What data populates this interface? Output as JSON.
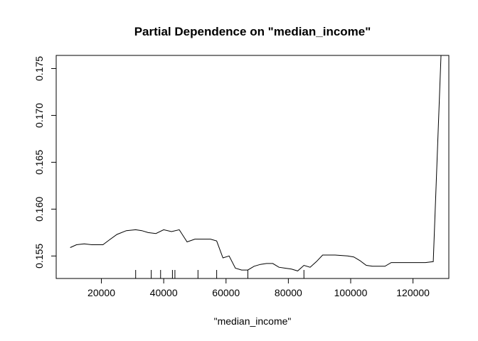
{
  "chart_data": {
    "type": "line",
    "title": "Partial Dependence on \"median_income\"",
    "xlabel": "\"median_income\"",
    "ylabel": "",
    "xlim": [
      5500,
      131500
    ],
    "ylim": [
      0.1526,
      0.1764
    ],
    "x_ticks": [
      20000,
      40000,
      60000,
      80000,
      100000,
      120000
    ],
    "x_tick_labels": [
      "20000",
      "40000",
      "60000",
      "80000",
      "100000",
      "120000"
    ],
    "y_ticks": [
      0.155,
      0.16,
      0.165,
      0.17,
      0.175
    ],
    "y_tick_labels": [
      "0.155",
      "0.160",
      "0.165",
      "0.170",
      "0.175"
    ],
    "rug": [
      31000,
      36000,
      39000,
      42800,
      43600,
      51000,
      57000,
      67000,
      85000
    ],
    "grid": false,
    "series": [
      {
        "x": [
          10000,
          12000,
          14500,
          17000,
          20500,
          22500,
          25000,
          28000,
          31000,
          33000,
          35000,
          37500,
          40000,
          42500,
          45000,
          47500,
          50000,
          52500,
          55000,
          57000,
          59000,
          61000,
          63000,
          65000,
          67000,
          69000,
          71000,
          73000,
          75000,
          77000,
          79000,
          81000,
          83000,
          85000,
          87000,
          89000,
          91000,
          95000,
          99000,
          101000,
          103000,
          105000,
          107000,
          109000,
          111000,
          113000,
          115000,
          120000,
          124000,
          126500,
          129000
        ],
        "y": [
          0.1559,
          0.1562,
          0.1563,
          0.1562,
          0.1562,
          0.1567,
          0.1573,
          0.1577,
          0.1578,
          0.1577,
          0.1575,
          0.1574,
          0.1578,
          0.1576,
          0.1578,
          0.1565,
          0.1568,
          0.1568,
          0.1568,
          0.1566,
          0.1548,
          0.155,
          0.1537,
          0.1535,
          0.1535,
          0.1539,
          0.1541,
          0.1542,
          0.1542,
          0.1538,
          0.1537,
          0.1536,
          0.1534,
          0.154,
          0.1538,
          0.1544,
          0.1551,
          0.1551,
          0.155,
          0.1549,
          0.1545,
          0.154,
          0.1539,
          0.1539,
          0.1539,
          0.1543,
          0.1543,
          0.1543,
          0.1543,
          0.1544,
          0.1764
        ]
      }
    ]
  }
}
